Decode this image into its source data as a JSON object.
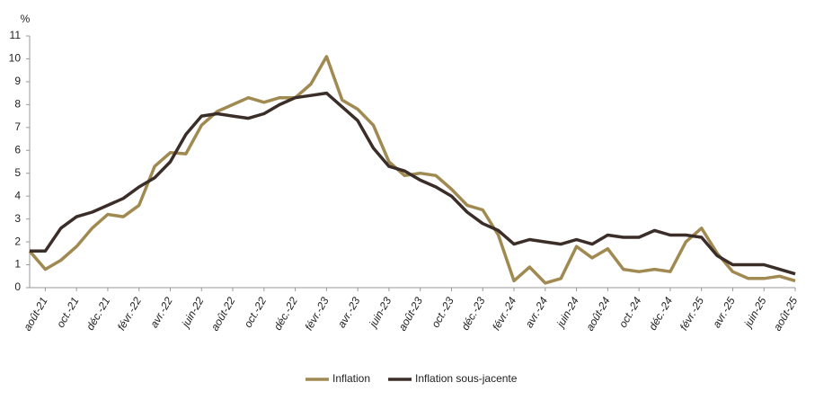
{
  "chart_data": {
    "type": "line",
    "y_unit": "%",
    "categories": [
      null,
      "août-21",
      null,
      "oct.-21",
      null,
      "déc.-21",
      null,
      "févr.-22",
      null,
      "avr.-22",
      null,
      "juin-22",
      null,
      "août-22",
      null,
      "oct.-22",
      null,
      "déc.-22",
      null,
      "févr.-23",
      null,
      "avr.-23",
      null,
      "juin-23",
      null,
      "août-23",
      null,
      "oct.-23",
      null,
      "déc.-23",
      null,
      "févr.-24",
      null,
      "avr.-24",
      null,
      "juin-24",
      null,
      "août-24",
      null,
      "oct.-24",
      null,
      "déc.-24",
      null,
      "févr.-25",
      null,
      "avr.-25",
      null,
      "juin-25",
      null,
      "août-25"
    ],
    "series": [
      {
        "name": "Inflation",
        "color": "#a08a52",
        "values": [
          1.6,
          0.8,
          1.2,
          1.8,
          2.6,
          3.2,
          3.1,
          3.6,
          5.3,
          5.9,
          5.85,
          7.1,
          7.7,
          8.0,
          8.3,
          8.1,
          8.3,
          8.3,
          8.9,
          10.1,
          8.2,
          7.8,
          7.1,
          5.5,
          4.9,
          5.0,
          4.9,
          4.3,
          3.6,
          3.4,
          2.3,
          0.3,
          0.9,
          0.2,
          0.4,
          1.8,
          1.3,
          1.7,
          0.8,
          0.7,
          0.8,
          0.7,
          2.0,
          2.6,
          1.5,
          0.7,
          0.4,
          0.4,
          0.5,
          0.3
        ]
      },
      {
        "name": "Inflation sous-jacente",
        "color": "#3b2d28",
        "values": [
          1.6,
          1.6,
          2.6,
          3.1,
          3.3,
          3.6,
          3.9,
          4.4,
          4.8,
          5.5,
          6.7,
          7.5,
          7.6,
          7.5,
          7.4,
          7.6,
          8.0,
          8.3,
          8.4,
          8.5,
          7.9,
          7.3,
          6.1,
          5.3,
          5.1,
          4.7,
          4.4,
          4.0,
          3.3,
          2.8,
          2.5,
          1.9,
          2.1,
          2.0,
          1.9,
          2.1,
          1.9,
          2.3,
          2.2,
          2.2,
          2.5,
          2.3,
          2.3,
          2.2,
          1.4,
          1.0,
          1.0,
          1.0,
          0.8,
          0.6
        ]
      }
    ],
    "ylim": [
      0,
      11
    ],
    "yticks": [
      0,
      1,
      2,
      3,
      4,
      5,
      6,
      7,
      8,
      9,
      10,
      11
    ],
    "grid": false,
    "legend": "bottom"
  }
}
